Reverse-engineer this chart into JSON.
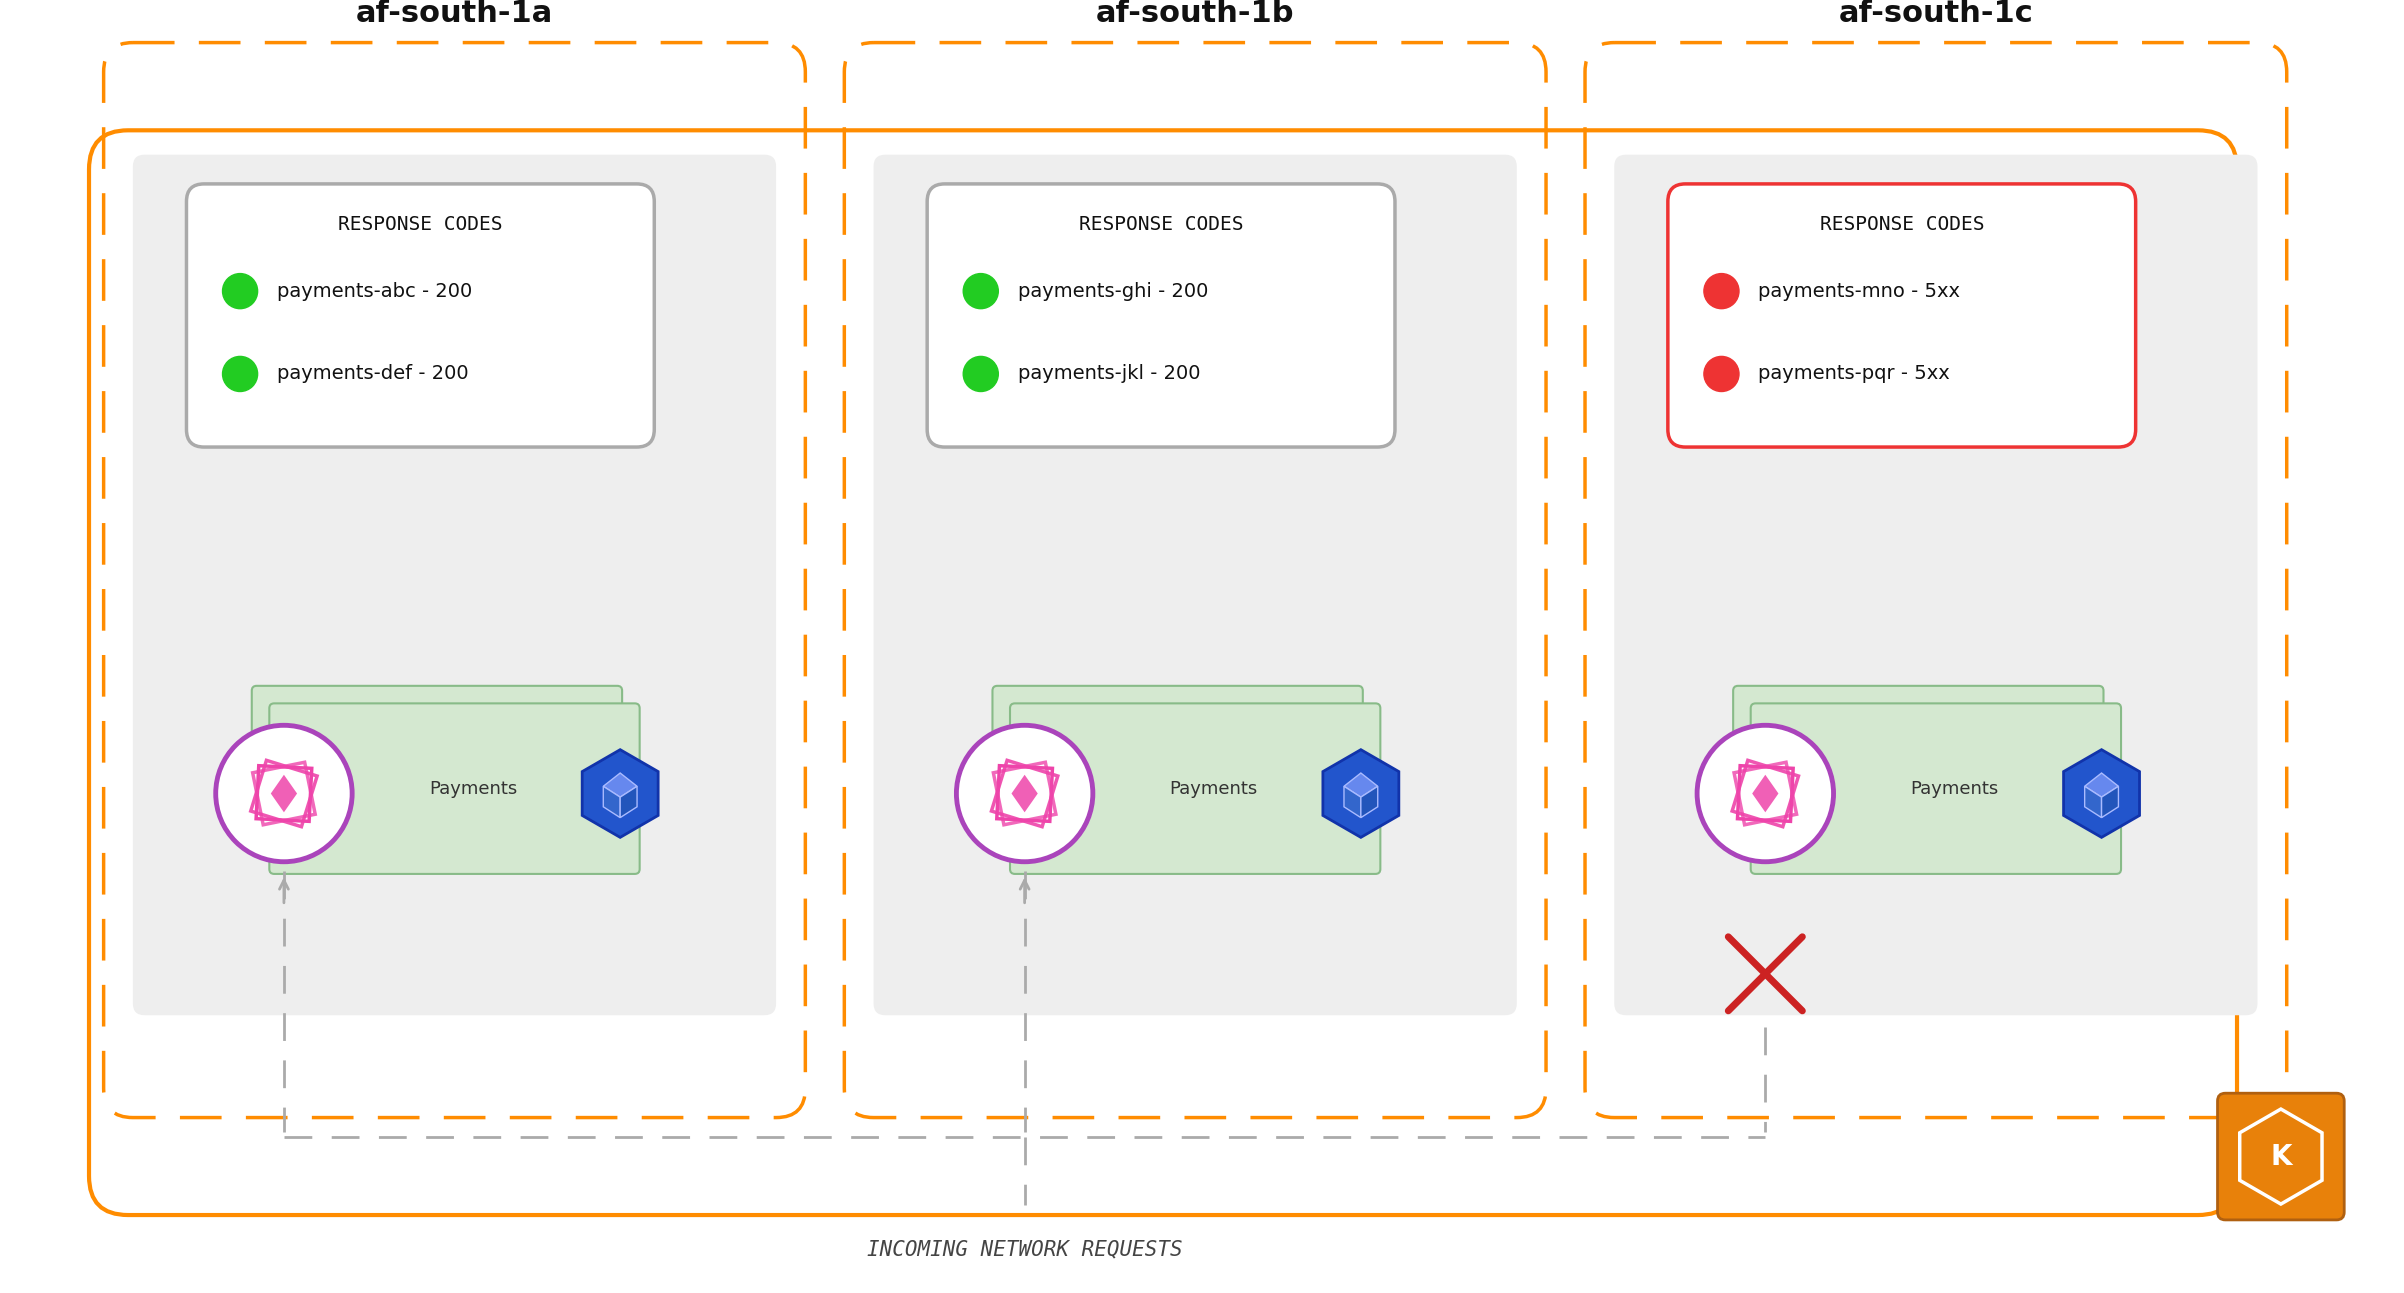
{
  "bg_color": "#ffffff",
  "outer_border_color": "#FF8C00",
  "az_labels": [
    "af-south-1a",
    "af-south-1b",
    "af-south-1c"
  ],
  "az1_codes": [
    "payments-abc - 200",
    "payments-def - 200"
  ],
  "az2_codes": [
    "payments-ghi - 200",
    "payments-jkl - 200"
  ],
  "az3_codes": [
    "payments-mno - 5xx",
    "payments-pqr - 5xx"
  ],
  "code_ok_color": "#22cc22",
  "code_err_color": "#ee3333",
  "response_codes_title": "RESPONSE CODES",
  "payments_label": "Payments",
  "arrow_color": "#aaaaaa",
  "incoming_label": "INCOMING NETWORK REQUESTS",
  "x_mark_color": "#cc2222",
  "k8s_icon_bg": "#E8810A",
  "green_box_color": "#d4e8d0",
  "green_box_edge": "#88bb88",
  "purple_circle_color": "#aa44bb",
  "blue_icon_color": "#2255cc",
  "gray_inner_bg": "#eeeeee",
  "font_family": "DejaVu Sans"
}
